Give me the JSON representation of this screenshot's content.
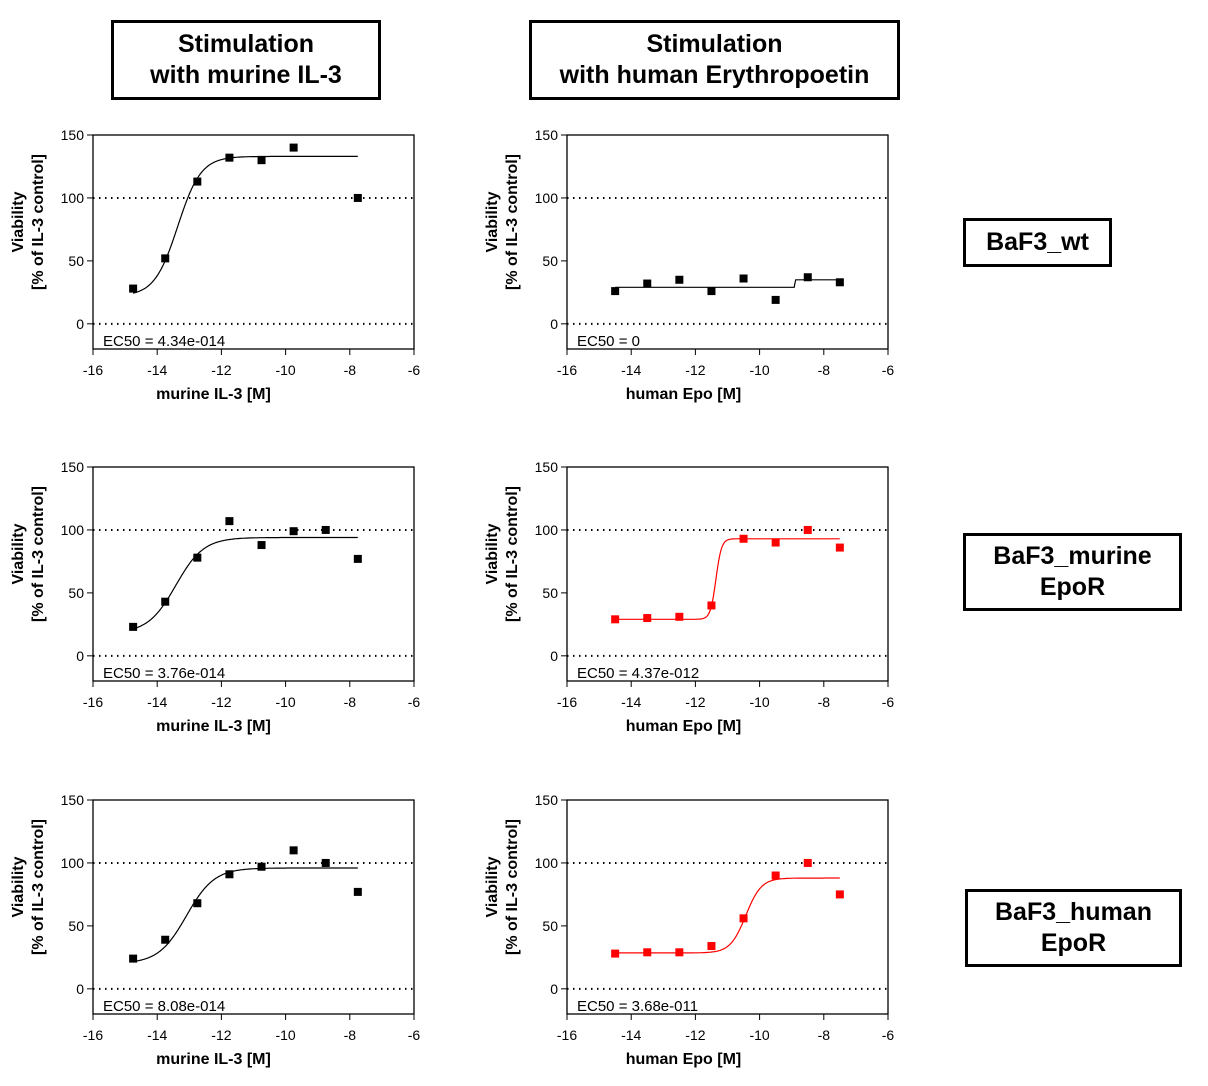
{
  "column_titles": [
    {
      "line1": "Stimulation",
      "line2": "with  murine IL-3"
    },
    {
      "line1": "Stimulation",
      "line2": "with  human  Erythropoetin"
    }
  ],
  "row_labels": [
    {
      "line1": "BaF3_wt",
      "line2": ""
    },
    {
      "line1": "BaF3_murine",
      "line2": "EpoR"
    },
    {
      "line1": "BaF3_human",
      "line2": "EpoR"
    }
  ],
  "chart_data": [
    {
      "type": "scatter",
      "row": 0,
      "col": 0,
      "color": "#000000",
      "xlabel": "murine IL-3 [M]",
      "ylabel": [
        "Viability",
        "[% of IL-3 control]"
      ],
      "xlim": [
        -16,
        -6
      ],
      "ylim": [
        -20,
        150
      ],
      "xticks": [
        "-16",
        "-14",
        "-12",
        "-10",
        "-8",
        "-6"
      ],
      "yticks": [
        "0",
        "50",
        "100",
        "150"
      ],
      "reference_lines": [
        0,
        100
      ],
      "annotation": "EC50 = 4.34e-014",
      "x": [
        -14.75,
        -13.75,
        -12.75,
        -11.75,
        -10.75,
        -9.75,
        -7.75
      ],
      "y": [
        28,
        52,
        113,
        132,
        130,
        140,
        100
      ],
      "fit": {
        "bottom": 22,
        "top": 133,
        "logEC50": -13.36,
        "hill": 1.2,
        "range": [
          -14.75,
          -7.75
        ]
      }
    },
    {
      "type": "scatter",
      "row": 0,
      "col": 1,
      "color": "#000000",
      "xlabel": "human  Epo [M]",
      "ylabel": [
        "Viability",
        "[% of IL-3 control]"
      ],
      "xlim": [
        -16,
        -6
      ],
      "ylim": [
        -20,
        150
      ],
      "xticks": [
        "-16",
        "-14",
        "-12",
        "-10",
        "-8",
        "-6"
      ],
      "yticks": [
        "0",
        "50",
        "100",
        "150"
      ],
      "reference_lines": [
        0,
        100
      ],
      "annotation": "EC50 = 0",
      "x": [
        -14.5,
        -13.5,
        -12.5,
        -11.5,
        -10.5,
        -9.5,
        -8.5,
        -7.5
      ],
      "y": [
        26,
        32,
        35,
        26,
        36,
        19,
        37,
        33
      ],
      "fit": {
        "bottom": 29,
        "top": 35,
        "logEC50": -8.9,
        "hill": 100,
        "range": [
          -14.5,
          -7.5
        ]
      }
    },
    {
      "type": "scatter",
      "row": 1,
      "col": 0,
      "color": "#000000",
      "xlabel": "murine IL-3 [M]",
      "ylabel": [
        "Viability",
        "[% of IL-3 control]"
      ],
      "xlim": [
        -16,
        -6
      ],
      "ylim": [
        -20,
        150
      ],
      "xticks": [
        "-16",
        "-14",
        "-12",
        "-10",
        "-8",
        "-6"
      ],
      "yticks": [
        "0",
        "50",
        "100",
        "150"
      ],
      "reference_lines": [
        0,
        100
      ],
      "annotation": "EC50 = 3.76e-014",
      "x": [
        -14.75,
        -13.75,
        -12.75,
        -11.75,
        -10.75,
        -9.75,
        -8.75,
        -7.75
      ],
      "y": [
        23,
        43,
        78,
        107,
        88,
        99,
        100,
        77
      ],
      "fit": {
        "bottom": 18,
        "top": 94,
        "logEC50": -13.42,
        "hill": 1.0,
        "range": [
          -14.75,
          -7.75
        ]
      }
    },
    {
      "type": "scatter",
      "row": 1,
      "col": 1,
      "color": "#ff0000",
      "xlabel": "human  Epo [M]",
      "ylabel": [
        "Viability",
        "[% of IL-3 control]"
      ],
      "xlim": [
        -16,
        -6
      ],
      "ylim": [
        -20,
        150
      ],
      "xticks": [
        "-16",
        "-14",
        "-12",
        "-10",
        "-8",
        "-6"
      ],
      "yticks": [
        "0",
        "50",
        "100",
        "150"
      ],
      "reference_lines": [
        0,
        100
      ],
      "annotation": "EC50 = 4.37e-012",
      "x": [
        -14.5,
        -13.5,
        -12.5,
        -11.5,
        -10.5,
        -9.5,
        -8.5,
        -7.5
      ],
      "y": [
        29,
        30,
        31,
        40,
        93,
        90,
        100,
        86
      ],
      "fit": {
        "bottom": 29,
        "top": 93,
        "logEC50": -11.36,
        "hill": 5,
        "range": [
          -14.5,
          -7.5
        ]
      }
    },
    {
      "type": "scatter",
      "row": 2,
      "col": 0,
      "color": "#000000",
      "xlabel": "murine IL-3 [M]",
      "ylabel": [
        "Viability",
        "[% of IL-3 control]"
      ],
      "xlim": [
        -16,
        -6
      ],
      "ylim": [
        -20,
        150
      ],
      "xticks": [
        "-16",
        "-14",
        "-12",
        "-10",
        "-8",
        "-6"
      ],
      "yticks": [
        "0",
        "50",
        "100",
        "150"
      ],
      "reference_lines": [
        0,
        100
      ],
      "annotation": "EC50 = 8.08e-014",
      "x": [
        -14.75,
        -13.75,
        -12.75,
        -11.75,
        -10.75,
        -9.75,
        -8.75,
        -7.75
      ],
      "y": [
        24,
        39,
        68,
        91,
        97,
        110,
        100,
        77
      ],
      "fit": {
        "bottom": 20,
        "top": 96,
        "logEC50": -13.09,
        "hill": 1.0,
        "range": [
          -14.75,
          -7.75
        ]
      }
    },
    {
      "type": "scatter",
      "row": 2,
      "col": 1,
      "color": "#ff0000",
      "xlabel": "human  Epo [M]",
      "ylabel": [
        "Viability",
        "[% of IL-3 control]"
      ],
      "xlim": [
        -16,
        -6
      ],
      "ylim": [
        -20,
        150
      ],
      "xticks": [
        "-16",
        "-14",
        "-12",
        "-10",
        "-8",
        "-6"
      ],
      "yticks": [
        "0",
        "50",
        "100",
        "150"
      ],
      "reference_lines": [
        0,
        100
      ],
      "annotation": "EC50 = 3.68e-011",
      "x": [
        -14.5,
        -13.5,
        -12.5,
        -11.5,
        -10.5,
        -9.5,
        -8.5,
        -7.5
      ],
      "y": [
        28,
        29,
        29,
        34,
        56,
        90,
        100,
        75
      ],
      "fit": {
        "bottom": 28.5,
        "top": 88,
        "logEC50": -10.43,
        "hill": 1.8,
        "range": [
          -14.5,
          -7.5
        ]
      }
    }
  ]
}
